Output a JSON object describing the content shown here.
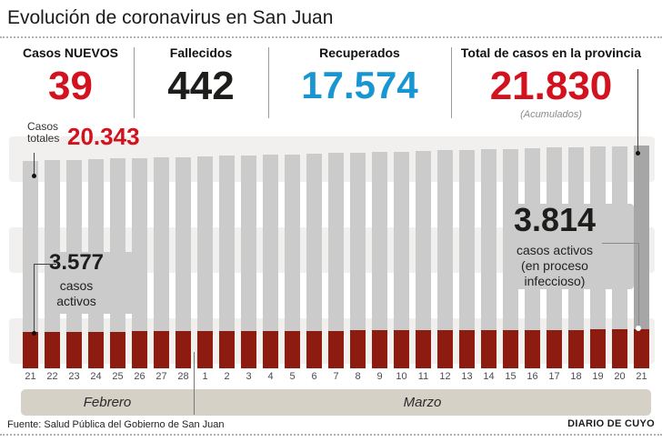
{
  "header": {
    "title": "Evolución de coronavirus en San Juan"
  },
  "stats": [
    {
      "label": "Casos NUEVOS",
      "value": "39"
    },
    {
      "label": "Fallecidos",
      "value": "442"
    },
    {
      "label": "Recuperados",
      "value": "17.574"
    },
    {
      "label": "Total de casos en la provincia",
      "value": "21.830",
      "note": "(Acumulados)"
    }
  ],
  "chart": {
    "totals_callout": {
      "label": "Casos totales",
      "value": "20.343"
    },
    "active_first": {
      "value": "3.577",
      "lines": [
        "casos",
        "activos"
      ]
    },
    "active_last": {
      "value": "3.814",
      "lines": [
        "casos activos",
        "(en proceso",
        "infeccioso)"
      ]
    }
  },
  "chart_data": {
    "type": "bar",
    "title": "Evolución de coronavirus en San Juan",
    "xlabel": "",
    "ylabel": "",
    "ylim": [
      0,
      21830
    ],
    "grid": false,
    "values_estimated_between_endpoints": true,
    "categories": [
      "21",
      "22",
      "23",
      "24",
      "25",
      "26",
      "27",
      "28",
      "1",
      "2",
      "3",
      "4",
      "5",
      "6",
      "7",
      "8",
      "9",
      "10",
      "11",
      "12",
      "13",
      "14",
      "15",
      "16",
      "17",
      "18",
      "19",
      "20",
      "21"
    ],
    "month_groups": [
      {
        "label": "Febrero",
        "days": 8
      },
      {
        "label": "Marzo",
        "days": 21
      }
    ],
    "series": [
      {
        "name": "Casos totales",
        "values": [
          20343,
          20396,
          20449,
          20502,
          20555,
          20609,
          20662,
          20715,
          20768,
          20821,
          20874,
          20927,
          20980,
          21033,
          21087,
          21140,
          21193,
          21246,
          21299,
          21352,
          21405,
          21458,
          21511,
          21564,
          21618,
          21671,
          21724,
          21777,
          21830
        ]
      },
      {
        "name": "Casos activos (en proceso infeccioso)",
        "values": [
          3577,
          3585,
          3594,
          3602,
          3611,
          3619,
          3628,
          3636,
          3645,
          3653,
          3662,
          3670,
          3679,
          3687,
          3696,
          3704,
          3712,
          3721,
          3729,
          3738,
          3746,
          3755,
          3763,
          3772,
          3780,
          3789,
          3797,
          3806,
          3814
        ]
      }
    ],
    "annotations": [
      {
        "text": "Casos totales 20.343",
        "target": "first bar total (21 Feb)"
      },
      {
        "text": "3.577 casos activos",
        "target": "first bar active (21 Feb)"
      },
      {
        "text": "3.814 casos activos (en proceso infeccioso)",
        "target": "last bar active (21 Mar)"
      },
      {
        "text": "21.830 (Acumulados)",
        "target": "last bar total (21 Mar)"
      }
    ]
  },
  "colors": {
    "accent_red": "#d2121e",
    "number_dark": "#1d1d1b",
    "blue": "#1796d2",
    "bar_gray": "#cbcbcb",
    "bar_dark": "#a6a6a6",
    "bar_red": "#8e1b10",
    "stripe": "#f1f0ee",
    "band": "#d5d1c7"
  },
  "footer": {
    "source": "Fuente: Salud Pública del Gobierno de San Juan",
    "credit": "DIARIO DE CUYO"
  }
}
